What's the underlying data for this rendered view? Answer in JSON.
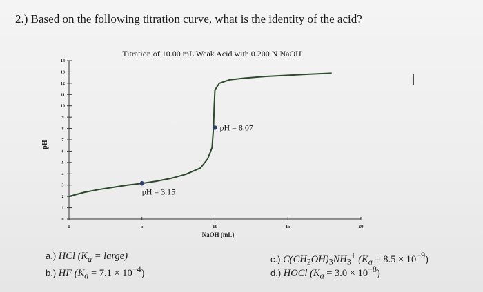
{
  "question": "2.) Based on the following titration curve, what is the identity of the acid?",
  "cursor_glyph": "I",
  "chart_data": {
    "type": "line",
    "title": "Titration of 10.00 mL Weak Acid with 0.200 N NaOH",
    "xlabel": "NaOH (mL)",
    "ylabel": "pH",
    "xlim": [
      0,
      20
    ],
    "ylim": [
      0,
      14
    ],
    "x_ticks": [
      "0",
      "5",
      "10",
      "15",
      "20"
    ],
    "y_ticks": [
      "0",
      "1",
      "2",
      "3",
      "4",
      "5",
      "6",
      "7",
      "8",
      "9",
      "10",
      "11",
      "12",
      "13",
      "14"
    ],
    "grid": false,
    "series": [
      {
        "points": [
          [
            0.0,
            2.0
          ],
          [
            1.0,
            2.35
          ],
          [
            2.0,
            2.6
          ],
          [
            3.0,
            2.8
          ],
          [
            4.0,
            3.0
          ],
          [
            5.0,
            3.15
          ],
          [
            6.0,
            3.35
          ],
          [
            7.0,
            3.6
          ],
          [
            8.0,
            3.95
          ],
          [
            9.0,
            4.5
          ],
          [
            9.5,
            5.3
          ],
          [
            9.8,
            6.3
          ],
          [
            9.9,
            8.07
          ],
          [
            9.95,
            10.0
          ],
          [
            10.0,
            11.4
          ],
          [
            10.3,
            12.0
          ],
          [
            11.0,
            12.3
          ],
          [
            12.0,
            12.45
          ],
          [
            13.5,
            12.6
          ],
          [
            15.0,
            12.7
          ],
          [
            16.5,
            12.8
          ],
          [
            18.0,
            12.88
          ]
        ]
      }
    ],
    "annotations": [
      {
        "x": 5.0,
        "y": 3.15,
        "label": "pH = 3.15"
      },
      {
        "x": 10.0,
        "y": 8.07,
        "label": "pH = 8.07"
      }
    ],
    "colors": {
      "curve": "#2c4a2c",
      "point": "#2f3f6b",
      "axis": "#333333"
    }
  },
  "options": [
    {
      "letter": "a.)",
      "formula": "HCl",
      "ka_text": "(K",
      "ka_sub": "a",
      "ka_value": " = large)"
    },
    {
      "letter": "b.)",
      "formula": "HF",
      "ka_text": "(K",
      "ka_sub": "a",
      "ka_value": " = 7.1 × 10",
      "ka_exp": "−4",
      "ka_close": ")"
    },
    {
      "letter": "c.)",
      "formula": "C(CH",
      "f_sub1": "2",
      "formula2": "OH)",
      "f_sub2": "3",
      "formula3": "NH",
      "f_sub3": "3",
      "f_sup3": "+",
      "ka_text": "(K",
      "ka_sub": "a",
      "ka_value": " = 8.5 × 10",
      "ka_exp": "−9",
      "ka_close": ")"
    },
    {
      "letter": "d.)",
      "formula": "HOCl",
      "ka_text": "(K",
      "ka_sub": "a",
      "ka_value": " = 3.0 × 10",
      "ka_exp": "−8",
      "ka_close": ")"
    }
  ]
}
